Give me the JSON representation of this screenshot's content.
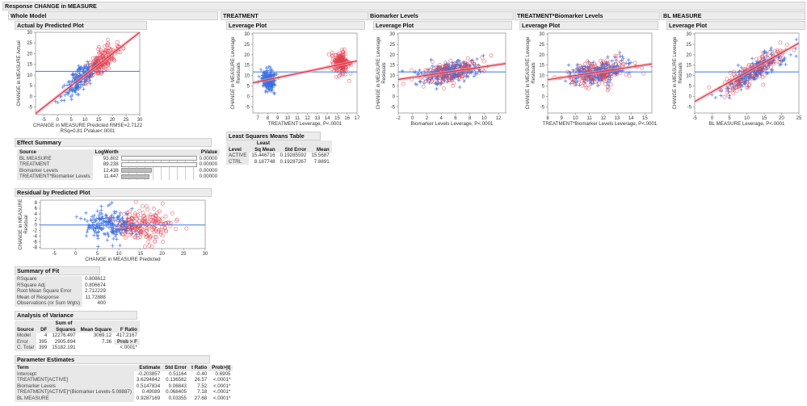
{
  "title": "Response CHANGE in MEASURE",
  "whole_model": {
    "title": "Whole Model",
    "actual_by_predicted_title": "Actual by Predicted Plot",
    "residual_title": "Residual by Predicted Plot"
  },
  "sections": [
    {
      "title": "TREATMENT",
      "plot_title": "Leverage Plot"
    },
    {
      "title": "Biomarker Levels",
      "plot_title": "Leverage Plot"
    },
    {
      "title": "TREATMENT*Biomarker Levels",
      "plot_title": "Leverage Plot"
    },
    {
      "title": "BL MEASURE",
      "plot_title": "Leverage Plot"
    }
  ],
  "effect_summary": {
    "title": "Effect Summary",
    "columns": [
      "Source",
      "LogWorth",
      "PValue"
    ],
    "rows": [
      {
        "source": "BL MEASURE",
        "logworth": "93.802",
        "pvalue": "0.00000",
        "value": 93.802
      },
      {
        "source": "TREATMENT",
        "logworth": "89.238",
        "pvalue": "0.00000",
        "value": 89.238
      },
      {
        "source": "Biomarker Levels",
        "logworth": "12.438",
        "pvalue": "0.00000",
        "value": 12.438
      },
      {
        "source": "TREATMENT*Biomarker Levels",
        "logworth": "11.447",
        "pvalue": "0.00000",
        "value": 11.447
      }
    ]
  },
  "ls_means": {
    "title": "Least Squares Means Table",
    "columns": [
      "Level",
      "Least",
      "Sq Mean",
      "Std Error",
      "Mean"
    ],
    "rows": [
      [
        "ACTIVE",
        "15.446716",
        "0.19285592",
        "15.5687"
      ],
      [
        "CTRL",
        "8.187748",
        "0.19287267",
        "7.8891"
      ]
    ]
  },
  "summary_of_fit": {
    "title": "Summary of Fit",
    "rows": [
      [
        "RSquare",
        "0.808612"
      ],
      [
        "RSquare Adj",
        "0.806674"
      ],
      [
        "Root Mean Square Error",
        "2.712229"
      ],
      [
        "Mean of Response",
        "11.72888"
      ],
      [
        "Observations (or Sum Wgts)",
        "400"
      ]
    ]
  },
  "anova": {
    "title": "Analysis of Variance",
    "columns": [
      "Source",
      "DF",
      "Sum of",
      "Squares",
      "Mean Square",
      "F Ratio"
    ],
    "rows": [
      [
        "Model",
        "4",
        "12276.497",
        "3069.12",
        "417.2167"
      ],
      [
        "Error",
        "395",
        "2905.694",
        "7.36",
        "Prob > F"
      ],
      [
        "C. Total",
        "399",
        "15182.191",
        "",
        "<.0001*"
      ]
    ]
  },
  "parameter_estimates": {
    "title": "Parameter Estimates",
    "columns": [
      "Term",
      "Estimate",
      "Std Error",
      "t Ratio",
      "Prob>|t|"
    ],
    "rows": [
      [
        "Intercept",
        "-0.203857",
        "0.51164",
        "-0.40",
        "0.6905"
      ],
      [
        "TREATMENT[ACTIVE]",
        "3.6294842",
        "0.136582",
        "26.57",
        "<.0001*"
      ],
      [
        "Biomarker Levels",
        "0.5147834",
        "0.06843",
        "7.52",
        "<.0001*"
      ],
      [
        "TREATMENT[ACTIVE]*(Biomarker Levels-5.08887)",
        "0.49089",
        "0.068405",
        "7.18",
        "<.0001*"
      ],
      [
        "BL MEASURE",
        "0.9287169",
        "0.03355",
        "27.68",
        "<.0001*"
      ]
    ]
  },
  "colors": {
    "ctrl": "#3b6fe0",
    "active": "#e0404f",
    "fit": "#e02838",
    "mean": "#3a78f0"
  },
  "chart_data": [
    {
      "id": "actual-by-predicted",
      "type": "scatter",
      "xlabel": "CHANGE in MEASURE Predicted RMSE=2.7122",
      "xlabel2": "RSq=0.81 PValue<.0001",
      "ylabel": [
        "CHANGE in MEASURE Actual"
      ],
      "xlim": [
        -8,
        30
      ],
      "ylim": [
        -8.5,
        30
      ],
      "xticks": [
        -5,
        0,
        5,
        10,
        15,
        20,
        25,
        30
      ],
      "yticks": [
        -5,
        0,
        5,
        10,
        15,
        20,
        25,
        30
      ],
      "fit": [
        [
          -8,
          -8
        ],
        [
          30,
          30
        ]
      ],
      "mean": 11.72888,
      "n_points": 400
    },
    {
      "id": "treatment-leverage",
      "type": "scatter",
      "xlabel": "TREATMENT Leverage, P<.0001",
      "ylabel": [
        "CHANGE in MEASURE Leverage",
        "Residuals"
      ],
      "xlim": [
        6.5,
        17
      ],
      "ylim": [
        -8,
        30.4
      ],
      "xticks": [
        7,
        8,
        9,
        10,
        11,
        12,
        13,
        14,
        15,
        16,
        17
      ],
      "yticks": [
        -5,
        0,
        5,
        10,
        15,
        20,
        25,
        30
      ],
      "fit": [
        [
          6.5,
          6.5
        ],
        [
          17,
          17
        ]
      ],
      "mean": 11.72888,
      "n_points": 400
    },
    {
      "id": "biomarker-leverage",
      "type": "scatter",
      "xlabel": "Biomarker Levels Leverage, P<.0001",
      "ylabel": [
        "CHANGE in MEASURE Leverage",
        "Residuals"
      ],
      "xlim": [
        -2,
        13
      ],
      "ylim": [
        -8,
        30.4
      ],
      "xticks": [
        -2,
        0,
        2,
        4,
        6,
        8,
        10,
        12
      ],
      "yticks": [
        -5,
        0,
        5,
        10,
        15,
        20,
        25,
        30
      ],
      "fit": [
        [
          -2,
          8.1
        ],
        [
          13,
          15.8
        ]
      ],
      "mean": 11.72888,
      "n_points": 400
    },
    {
      "id": "interaction-leverage",
      "type": "scatter",
      "xlabel": "TREATMENT*Biomarker Levels Leverage, P<.0001",
      "ylabel": [
        "CHANGE in MEASURE Leverage",
        "Residuals"
      ],
      "xlim": [
        8,
        15.5
      ],
      "ylim": [
        -8,
        30.4
      ],
      "xticks": [
        8,
        9,
        10,
        11,
        12,
        13,
        14,
        15
      ],
      "yticks": [
        -5,
        0,
        5,
        10,
        15,
        20,
        25,
        30
      ],
      "fit": [
        [
          8,
          8
        ],
        [
          15.5,
          15.6
        ]
      ],
      "mean": 11.72888,
      "n_points": 400
    },
    {
      "id": "bl-measure-leverage",
      "type": "scatter",
      "xlabel": "BL MEASURE Leverage, P<.0001",
      "ylabel": [
        "CHANGE in MEASURE Leverage",
        "Residuals"
      ],
      "xlim": [
        -5,
        25
      ],
      "ylim": [
        -8,
        30.4
      ],
      "xticks": [
        -5,
        0,
        5,
        10,
        15,
        20,
        25
      ],
      "yticks": [
        -5,
        0,
        5,
        10,
        15,
        20,
        25,
        30
      ],
      "fit": [
        [
          -5,
          -2.5
        ],
        [
          25,
          25.6
        ]
      ],
      "mean": 11.72888,
      "n_points": 400
    },
    {
      "id": "residual-by-predicted",
      "type": "scatter",
      "xlabel": "CHANGE in MEASURE Predicted",
      "ylabel": [
        "CHANGE in MEASURE",
        "Residual"
      ],
      "xlim": [
        -8.2,
        30
      ],
      "ylim": [
        -8.5,
        8.9
      ],
      "xticks": [
        -5,
        0,
        5,
        10,
        15,
        20,
        25,
        30
      ],
      "yticks": [
        -8,
        -6,
        -4,
        -2,
        0,
        2,
        4,
        6,
        8
      ],
      "fit": null,
      "mean": 0,
      "n_points": 400
    }
  ]
}
